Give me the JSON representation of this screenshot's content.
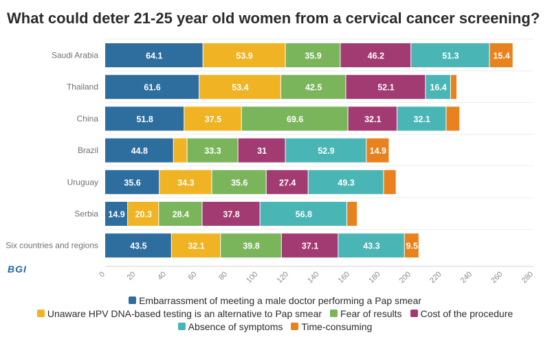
{
  "logo_text": "BGI",
  "colors": [
    "#2e6e9e",
    "#f0b323",
    "#7ab55c",
    "#a23b72",
    "#4ab5b5",
    "#e8821e"
  ],
  "chart_data": {
    "type": "bar",
    "orientation": "horizontal",
    "stacked": true,
    "title": "What could deter 21-25 year old women from a cervical cancer screening?",
    "categories": [
      "Saudi Arabia",
      "Thailand",
      "China",
      "Brazil",
      "Uruguay",
      "Serbia",
      "Six countries and regions"
    ],
    "series": [
      {
        "name": "Embarrassment of meeting a male doctor performing a Pap smear",
        "values": [
          64.1,
          61.6,
          51.8,
          44.8,
          35.6,
          14.9,
          43.5
        ]
      },
      {
        "name": "Unaware HPV DNA-based testing is an alternative to Pap smear",
        "values": [
          53.9,
          53.4,
          37.5,
          8.9,
          34.3,
          20.3,
          32.1
        ]
      },
      {
        "name": "Fear of results",
        "values": [
          35.9,
          42.5,
          69.6,
          33.3,
          35.6,
          28.4,
          39.8
        ]
      },
      {
        "name": "Cost of the procedure",
        "values": [
          46.2,
          52.1,
          32.1,
          31,
          27.4,
          37.8,
          37.1
        ]
      },
      {
        "name": "Absence of symptoms",
        "values": [
          51.3,
          16.4,
          32.1,
          52.9,
          49.3,
          56.8,
          43.3
        ]
      },
      {
        "name": "Time-consuming",
        "values": [
          15.4,
          4.1,
          8.9,
          14.9,
          8.2,
          6.8,
          9.5
        ]
      }
    ],
    "labels": [
      [
        "64.1",
        "53.9",
        "35.9",
        "46.2",
        "51.3",
        "15.4"
      ],
      [
        "61.6",
        "53.4",
        "42.5",
        "52.1",
        "16.4",
        ""
      ],
      [
        "51.8",
        "37.5",
        "69.6",
        "32.1",
        "32.1",
        ""
      ],
      [
        "44.8",
        "",
        "33.3",
        "31",
        "52.9",
        "14.9"
      ],
      [
        "35.6",
        "34.3",
        "35.6",
        "27.4",
        "49.3",
        ""
      ],
      [
        "14.9",
        "20.3",
        "28.4",
        "37.8",
        "56.8",
        ""
      ],
      [
        "43.5",
        "32.1",
        "39.8",
        "37.1",
        "43.3",
        "9.5"
      ]
    ],
    "xlim": [
      0,
      280
    ],
    "xticks": [
      0,
      20,
      40,
      60,
      80,
      100,
      120,
      140,
      160,
      180,
      200,
      220,
      240,
      260,
      280
    ],
    "grid": true,
    "legend_position": "bottom",
    "legend_rows": [
      [
        0
      ],
      [
        1,
        2,
        3
      ],
      [
        4,
        5
      ]
    ]
  }
}
